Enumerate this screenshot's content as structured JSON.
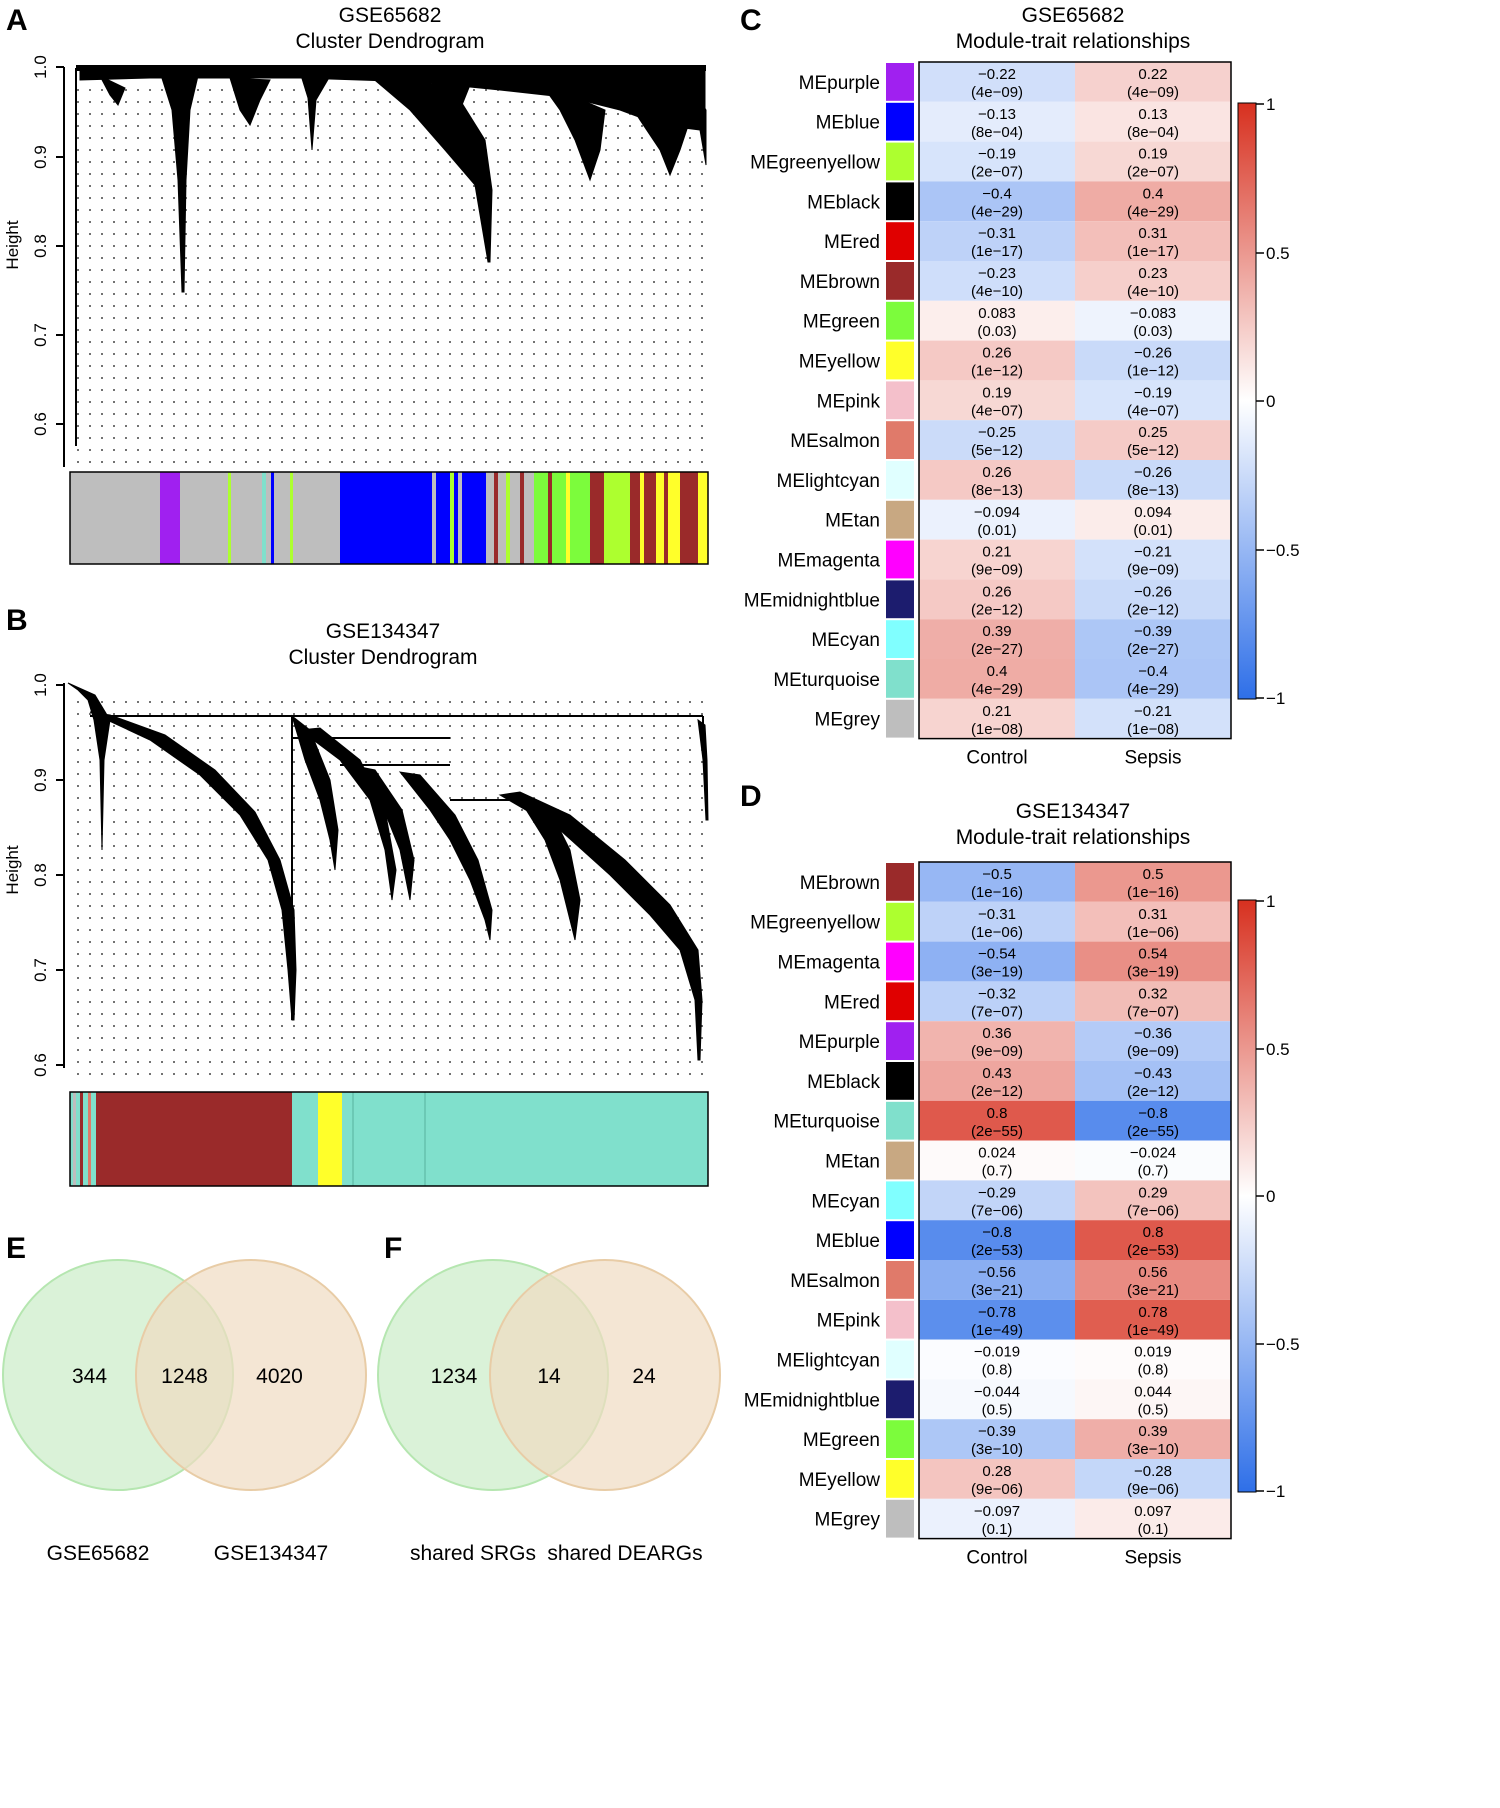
{
  "panels": {
    "A": {
      "letter": "A",
      "title_line1": "GSE65682",
      "title_line2": "Cluster Dendrogram",
      "ylabel": "Height",
      "yticks": [
        "0.6",
        "0.7",
        "0.8",
        "0.9",
        "1.0"
      ]
    },
    "B": {
      "letter": "B",
      "title_line1": "GSE134347",
      "title_line2": "Cluster Dendrogram",
      "ylabel": "Height",
      "yticks": [
        "0.6",
        "0.7",
        "0.8",
        "0.9",
        "1.0"
      ]
    },
    "C": {
      "letter": "C",
      "title_line1": "GSE65682",
      "title_line2": "Module-trait relationships",
      "scale_ticks": [
        "1",
        "0.5",
        "0",
        "−0.5",
        "−1"
      ]
    },
    "D": {
      "letter": "D",
      "title_line1": "GSE134347",
      "title_line2": "Module-trait relationships",
      "scale_ticks": [
        "1",
        "0.5",
        "0",
        "−0.5",
        "−1"
      ]
    },
    "E": {
      "letter": "E"
    },
    "F": {
      "letter": "F"
    }
  },
  "chart_data": [
    {
      "id": "A",
      "type": "dendrogram",
      "title": "GSE65682 Cluster Dendrogram",
      "ylabel": "Height",
      "ylim": [
        0.55,
        1.0
      ],
      "module_color_bar": [
        "grey",
        "purple",
        "grey",
        "blue",
        "greenyellow",
        "brown",
        "yellow",
        "brown",
        "yellow"
      ]
    },
    {
      "id": "B",
      "type": "dendrogram",
      "title": "GSE134347 Cluster Dendrogram",
      "ylabel": "Height",
      "ylim": [
        0.6,
        1.0
      ],
      "module_color_bar": [
        "brown",
        "turquoise",
        "yellow",
        "turquoise"
      ]
    },
    {
      "id": "C",
      "type": "heatmap",
      "title": "GSE65682 Module-trait relationships",
      "columns": [
        "Control",
        "Sepsis"
      ],
      "scale": [
        -1,
        1
      ],
      "rows": [
        {
          "name": "MEpurple",
          "color": "#a020f0",
          "control": "−0.22",
          "control_p": "(4e−09)",
          "sepsis": "0.22",
          "sepsis_p": "(4e−09)",
          "r": -0.22
        },
        {
          "name": "MEblue",
          "color": "#0000ff",
          "control": "−0.13",
          "control_p": "(8e−04)",
          "sepsis": "0.13",
          "sepsis_p": "(8e−04)",
          "r": -0.13
        },
        {
          "name": "MEgreenyellow",
          "color": "#adff2f",
          "control": "−0.19",
          "control_p": "(2e−07)",
          "sepsis": "0.19",
          "sepsis_p": "(2e−07)",
          "r": -0.19
        },
        {
          "name": "MEblack",
          "color": "#000000",
          "control": "−0.4",
          "control_p": "(4e−29)",
          "sepsis": "0.4",
          "sepsis_p": "(4e−29)",
          "r": -0.4
        },
        {
          "name": "MEred",
          "color": "#e00000",
          "control": "−0.31",
          "control_p": "(1e−17)",
          "sepsis": "0.31",
          "sepsis_p": "(1e−17)",
          "r": -0.31
        },
        {
          "name": "MEbrown",
          "color": "#9a2a2a",
          "control": "−0.23",
          "control_p": "(4e−10)",
          "sepsis": "0.23",
          "sepsis_p": "(4e−10)",
          "r": -0.23
        },
        {
          "name": "MEgreen",
          "color": "#7cfc3c",
          "control": "0.083",
          "control_p": "(0.03)",
          "sepsis": "−0.083",
          "sepsis_p": "(0.03)",
          "r": 0.083
        },
        {
          "name": "MEyellow",
          "color": "#ffff2a",
          "control": "0.26",
          "control_p": "(1e−12)",
          "sepsis": "−0.26",
          "sepsis_p": "(1e−12)",
          "r": 0.26
        },
        {
          "name": "MEpink",
          "color": "#f4c0cb",
          "control": "0.19",
          "control_p": "(4e−07)",
          "sepsis": "−0.19",
          "sepsis_p": "(4e−07)",
          "r": 0.19
        },
        {
          "name": "MEsalmon",
          "color": "#e07a6a",
          "control": "−0.25",
          "control_p": "(5e−12)",
          "sepsis": "0.25",
          "sepsis_p": "(5e−12)",
          "r": -0.25
        },
        {
          "name": "MElightcyan",
          "color": "#e0ffff",
          "control": "0.26",
          "control_p": "(8e−13)",
          "sepsis": "−0.26",
          "sepsis_p": "(8e−13)",
          "r": 0.26
        },
        {
          "name": "MEtan",
          "color": "#c8a882",
          "control": "−0.094",
          "control_p": "(0.01)",
          "sepsis": "0.094",
          "sepsis_p": "(0.01)",
          "r": -0.094
        },
        {
          "name": "MEmagenta",
          "color": "#ff00ff",
          "control": "0.21",
          "control_p": "(9e−09)",
          "sepsis": "−0.21",
          "sepsis_p": "(9e−09)",
          "r": 0.21
        },
        {
          "name": "MEmidnightblue",
          "color": "#1c1c6e",
          "control": "0.26",
          "control_p": "(2e−12)",
          "sepsis": "−0.26",
          "sepsis_p": "(2e−12)",
          "r": 0.26
        },
        {
          "name": "MEcyan",
          "color": "#80ffff",
          "control": "0.39",
          "control_p": "(2e−27)",
          "sepsis": "−0.39",
          "sepsis_p": "(2e−27)",
          "r": 0.39
        },
        {
          "name": "MEturquoise",
          "color": "#80e0cc",
          "control": "0.4",
          "control_p": "(4e−29)",
          "sepsis": "−0.4",
          "sepsis_p": "(4e−29)",
          "r": 0.4
        },
        {
          "name": "MEgrey",
          "color": "#bebebe",
          "control": "0.21",
          "control_p": "(1e−08)",
          "sepsis": "−0.21",
          "sepsis_p": "(1e−08)",
          "r": 0.21
        }
      ]
    },
    {
      "id": "D",
      "type": "heatmap",
      "title": "GSE134347 Module-trait relationships",
      "columns": [
        "Control",
        "Sepsis"
      ],
      "scale": [
        -1,
        1
      ],
      "rows": [
        {
          "name": "MEbrown",
          "color": "#9a2a2a",
          "control": "−0.5",
          "control_p": "(1e−16)",
          "sepsis": "0.5",
          "sepsis_p": "(1e−16)",
          "r": -0.5
        },
        {
          "name": "MEgreenyellow",
          "color": "#adff2f",
          "control": "−0.31",
          "control_p": "(1e−06)",
          "sepsis": "0.31",
          "sepsis_p": "(1e−06)",
          "r": -0.31
        },
        {
          "name": "MEmagenta",
          "color": "#ff00ff",
          "control": "−0.54",
          "control_p": "(3e−19)",
          "sepsis": "0.54",
          "sepsis_p": "(3e−19)",
          "r": -0.54
        },
        {
          "name": "MEred",
          "color": "#e00000",
          "control": "−0.32",
          "control_p": "(7e−07)",
          "sepsis": "0.32",
          "sepsis_p": "(7e−07)",
          "r": -0.32
        },
        {
          "name": "MEpurple",
          "color": "#a020f0",
          "control": "0.36",
          "control_p": "(9e−09)",
          "sepsis": "−0.36",
          "sepsis_p": "(9e−09)",
          "r": 0.36
        },
        {
          "name": "MEblack",
          "color": "#000000",
          "control": "0.43",
          "control_p": "(2e−12)",
          "sepsis": "−0.43",
          "sepsis_p": "(2e−12)",
          "r": 0.43
        },
        {
          "name": "MEturquoise",
          "color": "#80e0cc",
          "control": "0.8",
          "control_p": "(2e−55)",
          "sepsis": "−0.8",
          "sepsis_p": "(2e−55)",
          "r": 0.8
        },
        {
          "name": "MEtan",
          "color": "#c8a882",
          "control": "0.024",
          "control_p": "(0.7)",
          "sepsis": "−0.024",
          "sepsis_p": "(0.7)",
          "r": 0.024
        },
        {
          "name": "MEcyan",
          "color": "#80ffff",
          "control": "−0.29",
          "control_p": "(7e−06)",
          "sepsis": "0.29",
          "sepsis_p": "(7e−06)",
          "r": -0.29
        },
        {
          "name": "MEblue",
          "color": "#0000ff",
          "control": "−0.8",
          "control_p": "(2e−53)",
          "sepsis": "0.8",
          "sepsis_p": "(2e−53)",
          "r": -0.8
        },
        {
          "name": "MEsalmon",
          "color": "#e07a6a",
          "control": "−0.56",
          "control_p": "(3e−21)",
          "sepsis": "0.56",
          "sepsis_p": "(3e−21)",
          "r": -0.56
        },
        {
          "name": "MEpink",
          "color": "#f4c0cb",
          "control": "−0.78",
          "control_p": "(1e−49)",
          "sepsis": "0.78",
          "sepsis_p": "(1e−49)",
          "r": -0.78
        },
        {
          "name": "MElightcyan",
          "color": "#e0ffff",
          "control": "−0.019",
          "control_p": "(0.8)",
          "sepsis": "0.019",
          "sepsis_p": "(0.8)",
          "r": -0.019
        },
        {
          "name": "MEmidnightblue",
          "color": "#1c1c6e",
          "control": "−0.044",
          "control_p": "(0.5)",
          "sepsis": "0.044",
          "sepsis_p": "(0.5)",
          "r": -0.044
        },
        {
          "name": "MEgreen",
          "color": "#7cfc3c",
          "control": "−0.39",
          "control_p": "(3e−10)",
          "sepsis": "0.39",
          "sepsis_p": "(3e−10)",
          "r": -0.39
        },
        {
          "name": "MEyellow",
          "color": "#ffff2a",
          "control": "0.28",
          "control_p": "(9e−06)",
          "sepsis": "−0.28",
          "sepsis_p": "(9e−06)",
          "r": 0.28
        },
        {
          "name": "MEgrey",
          "color": "#bebebe",
          "control": "−0.097",
          "control_p": "(0.1)",
          "sepsis": "0.097",
          "sepsis_p": "(0.1)",
          "r": -0.097
        }
      ]
    },
    {
      "id": "E",
      "type": "venn",
      "sets": [
        "GSE65682",
        "GSE134347"
      ],
      "left_only": "344",
      "intersection": "1248",
      "right_only": "4020",
      "colors": [
        "#cdeecb",
        "#efdcc2"
      ]
    },
    {
      "id": "F",
      "type": "venn",
      "sets": [
        "shared SRGs",
        "shared DEARGs"
      ],
      "left_only": "1234",
      "intersection": "14",
      "right_only": "24",
      "colors": [
        "#cdeecb",
        "#efdcc2"
      ]
    }
  ]
}
